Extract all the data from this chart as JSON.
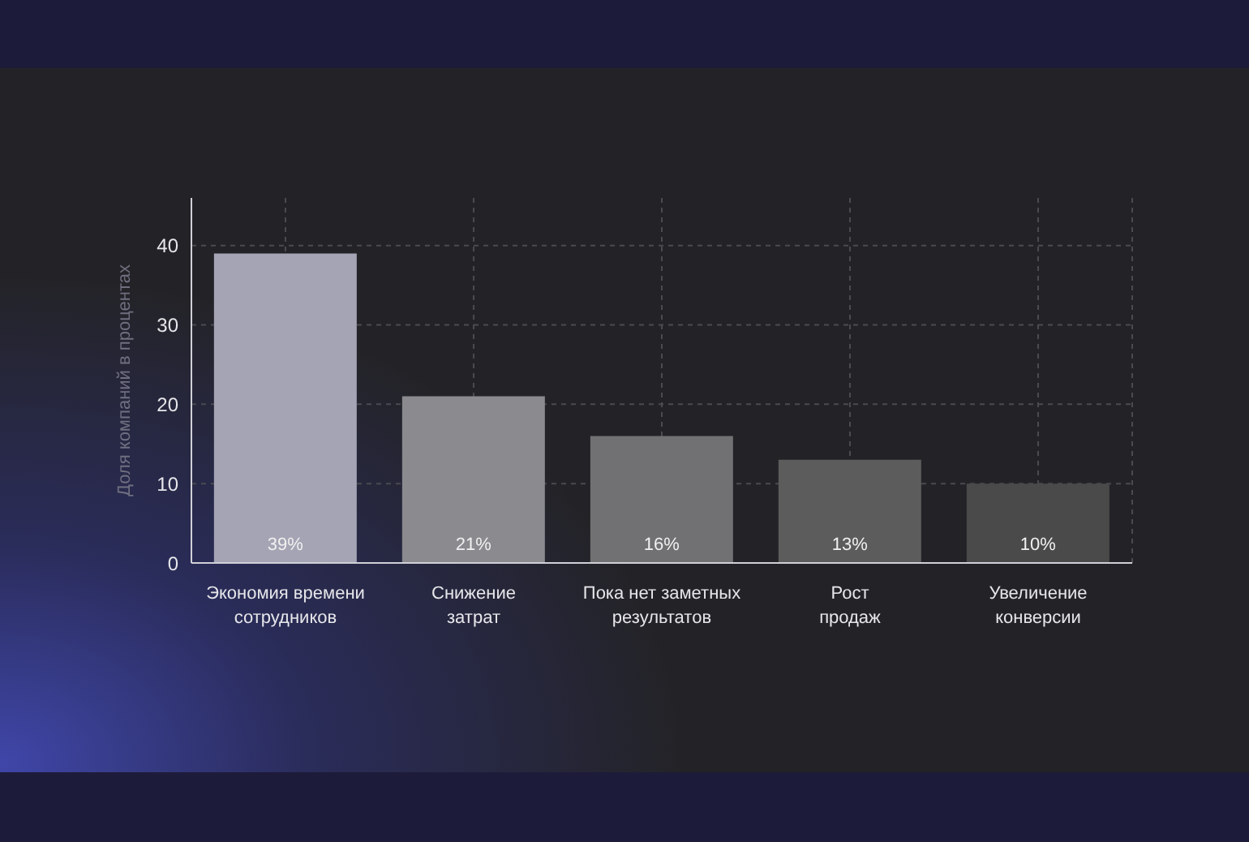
{
  "chart_data": {
    "type": "bar",
    "ylabel": "Доля компаний в процентах",
    "categories": [
      "Экономия времени\nсотрудников",
      "Снижение\nзатрат",
      "Пока нет заметных\nрезультатов",
      "Рост\nпродаж",
      "Увеличение\nконверсии"
    ],
    "values": [
      39,
      21,
      16,
      13,
      10
    ],
    "value_labels": [
      "39%",
      "21%",
      "16%",
      "13%",
      "10%"
    ],
    "colors": [
      "#a4a4b4",
      "#8a8a8f",
      "#717173",
      "#5c5c5c",
      "#4a4a4a"
    ],
    "ylim": [
      0,
      46
    ],
    "yticks": [
      0,
      10,
      20,
      30,
      40
    ],
    "grid": true,
    "legend": false
  }
}
